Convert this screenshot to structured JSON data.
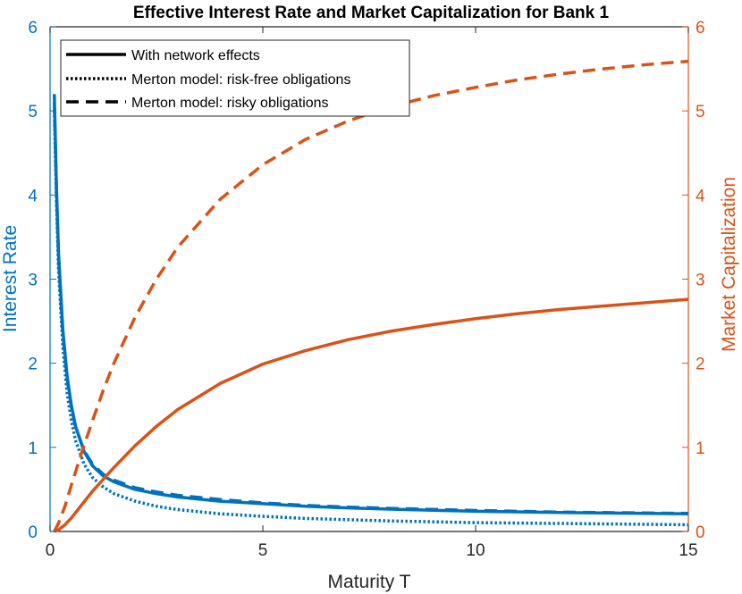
{
  "chart_data": {
    "type": "line",
    "title": "Effective Interest Rate and Market Capitalization for Bank 1",
    "xlabel": "Maturity T",
    "ylabel_left": "Interest Rate",
    "ylabel_right": "Market Capitalization",
    "xlim": [
      0,
      15
    ],
    "ylim_left": [
      0,
      6
    ],
    "ylim_right": [
      0,
      6
    ],
    "xticks": [
      0,
      5,
      10,
      15
    ],
    "yticks_left": [
      0,
      1,
      2,
      3,
      4,
      5,
      6
    ],
    "yticks_right": [
      0,
      1,
      2,
      3,
      4,
      5,
      6
    ],
    "grid": false,
    "legend_position": "top-left",
    "legend": [
      {
        "label": "With network effects",
        "style": "solid"
      },
      {
        "label": "Merton model: risk-free obligations",
        "style": "dotted"
      },
      {
        "label": "Merton model: risky obligations",
        "style": "dashed"
      }
    ],
    "colors": {
      "left_axis": "#0072BD",
      "right_axis": "#D95319",
      "legend": "#000000"
    },
    "series": [
      {
        "axis": "left",
        "style": "solid",
        "color": "#0072BD",
        "x": [
          0.1,
          0.15,
          0.2,
          0.3,
          0.4,
          0.5,
          0.6,
          0.8,
          1.0,
          1.25,
          1.5,
          2,
          2.5,
          3,
          4,
          5,
          6,
          7,
          8,
          10,
          12,
          15
        ],
        "y": [
          5.2,
          4.1,
          3.3,
          2.4,
          1.85,
          1.5,
          1.25,
          0.95,
          0.78,
          0.66,
          0.59,
          0.5,
          0.45,
          0.41,
          0.36,
          0.33,
          0.3,
          0.28,
          0.265,
          0.24,
          0.225,
          0.21
        ]
      },
      {
        "axis": "left",
        "style": "dashed",
        "color": "#0072BD",
        "x": [
          0.1,
          0.15,
          0.2,
          0.3,
          0.4,
          0.5,
          0.6,
          0.8,
          1.0,
          1.25,
          1.5,
          2,
          2.5,
          3,
          4,
          5,
          6,
          7,
          8,
          10,
          12,
          15
        ],
        "y": [
          5.1,
          4.05,
          3.25,
          2.35,
          1.82,
          1.48,
          1.24,
          0.96,
          0.8,
          0.68,
          0.61,
          0.52,
          0.47,
          0.43,
          0.38,
          0.34,
          0.31,
          0.29,
          0.275,
          0.25,
          0.23,
          0.215
        ]
      },
      {
        "axis": "left",
        "style": "dotted",
        "color": "#0072BD",
        "x": [
          0.1,
          0.15,
          0.2,
          0.3,
          0.4,
          0.5,
          0.6,
          0.8,
          1.0,
          1.25,
          1.5,
          2,
          2.5,
          3,
          4,
          5,
          6,
          7,
          8,
          10,
          12,
          15
        ],
        "y": [
          5.0,
          3.9,
          3.1,
          2.2,
          1.65,
          1.32,
          1.08,
          0.8,
          0.64,
          0.53,
          0.45,
          0.36,
          0.3,
          0.26,
          0.21,
          0.18,
          0.155,
          0.14,
          0.125,
          0.105,
          0.095,
          0.08
        ]
      },
      {
        "axis": "right",
        "style": "solid",
        "color": "#D95319",
        "x": [
          0.1,
          0.2,
          0.35,
          0.5,
          0.75,
          1,
          1.25,
          1.5,
          2,
          2.5,
          3,
          4,
          5,
          6,
          7,
          8,
          9,
          10,
          11,
          12,
          13,
          14,
          15
        ],
        "y": [
          0.0,
          0.02,
          0.08,
          0.16,
          0.32,
          0.48,
          0.62,
          0.76,
          1.02,
          1.25,
          1.45,
          1.76,
          1.99,
          2.15,
          2.28,
          2.38,
          2.46,
          2.53,
          2.59,
          2.64,
          2.68,
          2.72,
          2.76
        ]
      },
      {
        "axis": "right",
        "style": "dashed",
        "color": "#D95319",
        "x": [
          0.1,
          0.2,
          0.35,
          0.5,
          0.75,
          1,
          1.25,
          1.5,
          2,
          2.5,
          3,
          4,
          5,
          6,
          7,
          8,
          9,
          10,
          11,
          12,
          13,
          14,
          15
        ],
        "y": [
          0.0,
          0.1,
          0.3,
          0.55,
          0.95,
          1.32,
          1.68,
          2.0,
          2.55,
          3.0,
          3.38,
          3.95,
          4.36,
          4.66,
          4.88,
          5.05,
          5.18,
          5.28,
          5.37,
          5.44,
          5.5,
          5.55,
          5.59
        ]
      }
    ]
  }
}
